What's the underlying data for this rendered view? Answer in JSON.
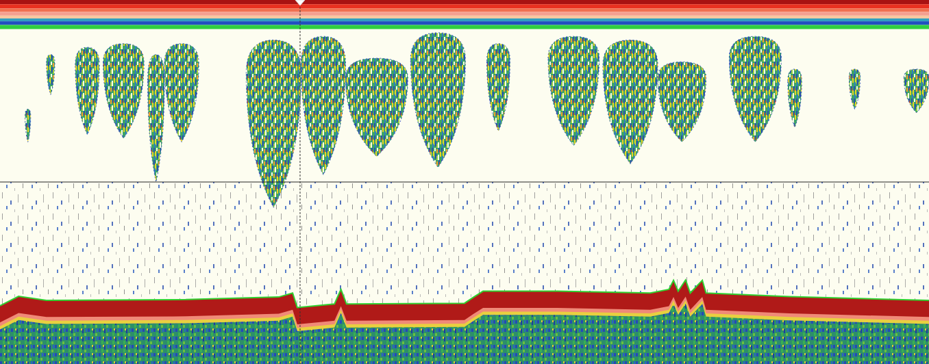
{
  "chart_data": {
    "type": "echogram",
    "tick_labels": false,
    "xlim": [
      0,
      100
    ],
    "ylim": [
      0,
      100
    ],
    "surface_depth": 7.8,
    "reference_depth": 50,
    "cursor_x": 32.3,
    "schools": [
      {
        "x_start": 2.7,
        "x_end": 3.3,
        "depth_top": 30,
        "depth_bottom": 39
      },
      {
        "x_start": 5.0,
        "x_end": 5.9,
        "depth_top": 15,
        "depth_bottom": 26
      },
      {
        "x_start": 8.1,
        "x_end": 10.7,
        "depth_top": 13,
        "depth_bottom": 37
      },
      {
        "x_start": 11.1,
        "x_end": 15.5,
        "depth_top": 12,
        "depth_bottom": 38
      },
      {
        "x_start": 15.9,
        "x_end": 17.7,
        "depth_top": 15,
        "depth_bottom": 50
      },
      {
        "x_start": 17.7,
        "x_end": 21.4,
        "depth_top": 12,
        "depth_bottom": 39
      },
      {
        "x_start": 26.5,
        "x_end": 32.4,
        "depth_top": 11,
        "depth_bottom": 57
      },
      {
        "x_start": 32.4,
        "x_end": 37.2,
        "depth_top": 10,
        "depth_bottom": 48
      },
      {
        "x_start": 37.2,
        "x_end": 43.9,
        "depth_top": 16,
        "depth_bottom": 43
      },
      {
        "x_start": 44.2,
        "x_end": 50.1,
        "depth_top": 9,
        "depth_bottom": 46
      },
      {
        "x_start": 52.4,
        "x_end": 54.9,
        "depth_top": 12,
        "depth_bottom": 36
      },
      {
        "x_start": 59.0,
        "x_end": 64.5,
        "depth_top": 10,
        "depth_bottom": 40
      },
      {
        "x_start": 64.9,
        "x_end": 70.8,
        "depth_top": 11,
        "depth_bottom": 45
      },
      {
        "x_start": 70.8,
        "x_end": 76.0,
        "depth_top": 17,
        "depth_bottom": 39
      },
      {
        "x_start": 78.5,
        "x_end": 84.1,
        "depth_top": 10,
        "depth_bottom": 39
      },
      {
        "x_start": 84.8,
        "x_end": 86.3,
        "depth_top": 19,
        "depth_bottom": 35
      },
      {
        "x_start": 91.4,
        "x_end": 92.6,
        "depth_top": 19,
        "depth_bottom": 30
      },
      {
        "x_start": 97.3,
        "x_end": 100,
        "depth_top": 19,
        "depth_bottom": 31
      }
    ],
    "seabed": {
      "x": [
        0,
        2,
        5,
        20,
        30,
        31.5,
        32,
        36,
        36.7,
        37.3,
        50,
        51,
        52,
        60,
        70,
        72,
        72.5,
        73,
        73.8,
        74.3,
        75.6,
        76,
        85,
        100
      ],
      "depth": [
        84,
        81.4,
        82.5,
        82.3,
        81.6,
        80.5,
        84.5,
        83.5,
        79.5,
        83.5,
        83.3,
        81.6,
        80,
        80,
        80.5,
        79.5,
        77,
        80,
        76.9,
        80.5,
        77,
        80.5,
        81.5,
        82.5
      ]
    }
  }
}
